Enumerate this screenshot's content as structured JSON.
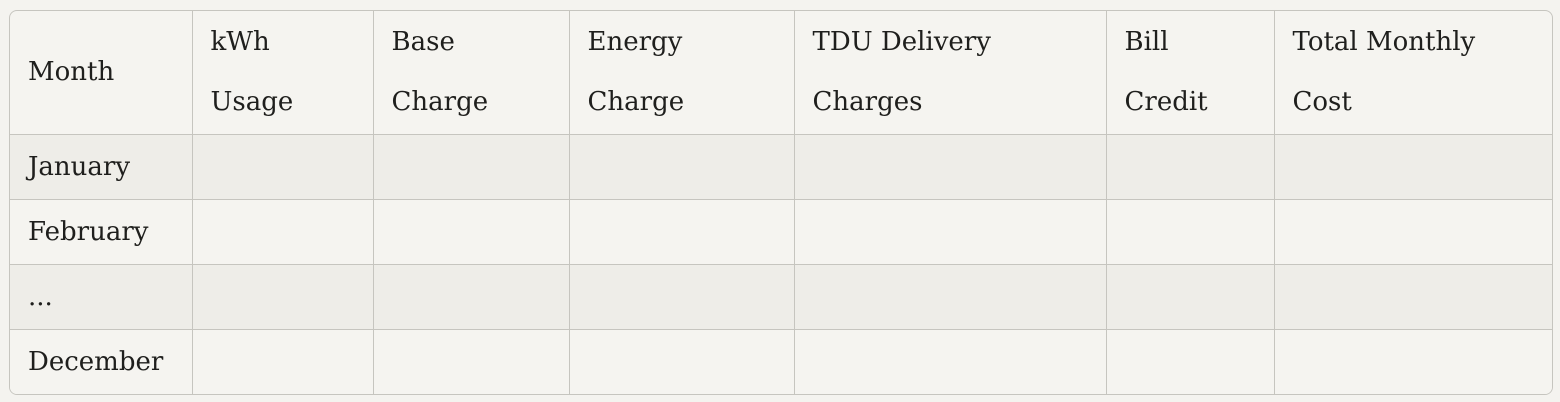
{
  "table": {
    "headers": [
      "Month",
      "kWh Usage",
      "Base Charge",
      "Energy Charge",
      "TDU Delivery Charges",
      "Bill Credit",
      "Total Monthly Cost"
    ],
    "rows": [
      [
        "January",
        "",
        "",
        "",
        "",
        "",
        ""
      ],
      [
        "February",
        "",
        "",
        "",
        "",
        "",
        ""
      ],
      [
        "...",
        "",
        "",
        "",
        "",
        "",
        ""
      ],
      [
        "December",
        "",
        "",
        "",
        "",
        "",
        ""
      ]
    ]
  }
}
